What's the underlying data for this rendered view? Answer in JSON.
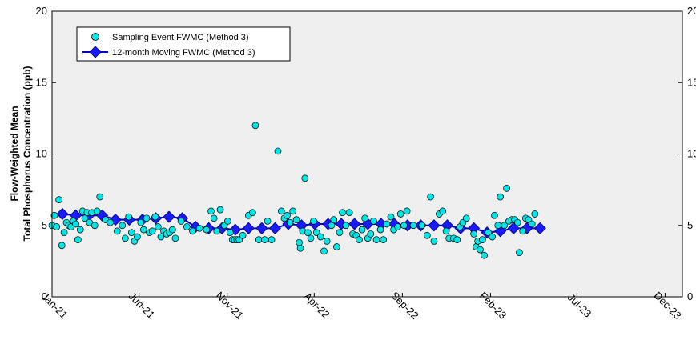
{
  "chart_data": {
    "type": "line",
    "ylabel_line1": "Flow-Weighted Mean",
    "ylabel_line2": "Total Phosphorus Concentration (ppb)",
    "xlabel": "",
    "ylim": [
      0,
      20
    ],
    "yticks": [
      0,
      5,
      10,
      15,
      20
    ],
    "x_range": [
      "2021-01-01",
      "2023-12-31"
    ],
    "x_ticks": [
      {
        "date": "2021-01-01",
        "label": "Jan-21"
      },
      {
        "date": "2021-06-01",
        "label": "Jun-21"
      },
      {
        "date": "2021-11-01",
        "label": "Nov-21"
      },
      {
        "date": "2022-04-01",
        "label": "Apr-22"
      },
      {
        "date": "2022-09-01",
        "label": "Sep-22"
      },
      {
        "date": "2023-02-01",
        "label": "Feb-23"
      },
      {
        "date": "2023-07-01",
        "label": "Jul-23"
      },
      {
        "date": "2023-12-01",
        "label": "Dec-23"
      }
    ],
    "grid": false,
    "legend_position": "top-left",
    "colors": {
      "plot_bg": "#efefef",
      "event_fill": "#00e5e5",
      "moving_line": "#0000cc",
      "moving_marker": "#1a1aff"
    },
    "series": [
      {
        "name": "Sampling Event FWMC (Method 3)",
        "style": "scatter",
        "points": [
          [
            "2021-01-01",
            5.0
          ],
          [
            "2021-01-05",
            5.7
          ],
          [
            "2021-01-09",
            4.9
          ],
          [
            "2021-01-13",
            6.8
          ],
          [
            "2021-01-18",
            3.6
          ],
          [
            "2021-01-22",
            4.5
          ],
          [
            "2021-01-26",
            5.2
          ],
          [
            "2021-01-30",
            5.0
          ],
          [
            "2021-02-03",
            4.9
          ],
          [
            "2021-02-07",
            5.3
          ],
          [
            "2021-02-11",
            5.1
          ],
          [
            "2021-02-15",
            4.0
          ],
          [
            "2021-02-19",
            4.7
          ],
          [
            "2021-02-23",
            6.0
          ],
          [
            "2021-02-27",
            5.5
          ],
          [
            "2021-03-03",
            5.9
          ],
          [
            "2021-03-07",
            5.2
          ],
          [
            "2021-03-11",
            5.9
          ],
          [
            "2021-03-16",
            5.0
          ],
          [
            "2021-03-20",
            6.0
          ],
          [
            "2021-03-25",
            7.0
          ],
          [
            "2021-04-04",
            5.4
          ],
          [
            "2021-04-12",
            5.2
          ],
          [
            "2021-04-24",
            4.6
          ],
          [
            "2021-05-03",
            5.0
          ],
          [
            "2021-05-08",
            4.1
          ],
          [
            "2021-05-14",
            5.6
          ],
          [
            "2021-05-19",
            4.5
          ],
          [
            "2021-05-24",
            3.9
          ],
          [
            "2021-05-29",
            4.2
          ],
          [
            "2021-06-04",
            5.2
          ],
          [
            "2021-06-09",
            4.7
          ],
          [
            "2021-06-14",
            5.5
          ],
          [
            "2021-06-19",
            4.5
          ],
          [
            "2021-06-24",
            4.6
          ],
          [
            "2021-06-29",
            5.6
          ],
          [
            "2021-07-04",
            4.9
          ],
          [
            "2021-07-09",
            4.2
          ],
          [
            "2021-07-14",
            4.6
          ],
          [
            "2021-07-19",
            4.4
          ],
          [
            "2021-07-24",
            4.5
          ],
          [
            "2021-07-29",
            4.7
          ],
          [
            "2021-08-03",
            4.1
          ],
          [
            "2021-08-13",
            5.3
          ],
          [
            "2021-08-23",
            4.9
          ],
          [
            "2021-09-02",
            4.6
          ],
          [
            "2021-09-14",
            4.8
          ],
          [
            "2021-09-26",
            4.7
          ],
          [
            "2021-10-04",
            6.0
          ],
          [
            "2021-10-09",
            5.5
          ],
          [
            "2021-10-14",
            4.6
          ],
          [
            "2021-10-20",
            6.1
          ],
          [
            "2021-10-27",
            5.0
          ],
          [
            "2021-11-02",
            5.3
          ],
          [
            "2021-11-06",
            4.5
          ],
          [
            "2021-11-10",
            4.0
          ],
          [
            "2021-11-14",
            4.0
          ],
          [
            "2021-11-18",
            4.0
          ],
          [
            "2021-11-22",
            4.0
          ],
          [
            "2021-11-28",
            4.3
          ],
          [
            "2021-12-08",
            5.7
          ],
          [
            "2021-12-15",
            5.9
          ],
          [
            "2021-12-20",
            12.0
          ],
          [
            "2021-12-26",
            4.0
          ],
          [
            "2022-01-05",
            4.0
          ],
          [
            "2022-01-10",
            5.3
          ],
          [
            "2022-01-17",
            4.0
          ],
          [
            "2022-01-28",
            10.2
          ],
          [
            "2022-02-03",
            6.0
          ],
          [
            "2022-02-08",
            5.5
          ],
          [
            "2022-02-13",
            5.7
          ],
          [
            "2022-02-18",
            5.2
          ],
          [
            "2022-02-23",
            6.0
          ],
          [
            "2022-03-01",
            5.4
          ],
          [
            "2022-03-06",
            3.8
          ],
          [
            "2022-03-08",
            3.4
          ],
          [
            "2022-03-12",
            4.6
          ],
          [
            "2022-03-16",
            8.3
          ],
          [
            "2022-03-21",
            4.5
          ],
          [
            "2022-03-26",
            4.1
          ],
          [
            "2022-03-31",
            5.3
          ],
          [
            "2022-04-05",
            4.5
          ],
          [
            "2022-04-12",
            4.2
          ],
          [
            "2022-04-18",
            3.2
          ],
          [
            "2022-04-23",
            3.9
          ],
          [
            "2022-05-01",
            5.0
          ],
          [
            "2022-05-05",
            5.4
          ],
          [
            "2022-05-10",
            3.5
          ],
          [
            "2022-05-15",
            4.5
          ],
          [
            "2022-05-20",
            5.9
          ],
          [
            "2022-05-26",
            5.0
          ],
          [
            "2022-06-01",
            5.9
          ],
          [
            "2022-06-07",
            4.4
          ],
          [
            "2022-06-13",
            4.3
          ],
          [
            "2022-06-18",
            4.0
          ],
          [
            "2022-06-23",
            4.7
          ],
          [
            "2022-06-28",
            5.5
          ],
          [
            "2022-07-03",
            4.1
          ],
          [
            "2022-07-08",
            4.4
          ],
          [
            "2022-07-13",
            5.3
          ],
          [
            "2022-07-18",
            4.0
          ],
          [
            "2022-07-25",
            4.7
          ],
          [
            "2022-07-30",
            4.0
          ],
          [
            "2022-08-05",
            5.1
          ],
          [
            "2022-08-12",
            5.6
          ],
          [
            "2022-08-17",
            4.7
          ],
          [
            "2022-08-24",
            4.9
          ],
          [
            "2022-08-29",
            5.8
          ],
          [
            "2022-09-04",
            5.0
          ],
          [
            "2022-09-09",
            6.0
          ],
          [
            "2022-09-20",
            5.0
          ],
          [
            "2022-10-05",
            5.0
          ],
          [
            "2022-10-14",
            4.3
          ],
          [
            "2022-10-20",
            7.0
          ],
          [
            "2022-10-26",
            3.9
          ],
          [
            "2022-11-04",
            5.8
          ],
          [
            "2022-11-10",
            6.0
          ],
          [
            "2022-11-16",
            4.6
          ],
          [
            "2022-11-21",
            4.1
          ],
          [
            "2022-11-29",
            4.1
          ],
          [
            "2022-12-05",
            4.0
          ],
          [
            "2022-12-10",
            4.9
          ],
          [
            "2022-12-15",
            5.2
          ],
          [
            "2022-12-21",
            5.5
          ],
          [
            "2023-01-03",
            4.4
          ],
          [
            "2023-01-07",
            3.5
          ],
          [
            "2023-01-10",
            3.9
          ],
          [
            "2023-01-14",
            3.3
          ],
          [
            "2023-01-18",
            4.0
          ],
          [
            "2023-01-21",
            2.9
          ],
          [
            "2023-01-28",
            4.5
          ],
          [
            "2023-02-04",
            4.2
          ],
          [
            "2023-02-08",
            5.7
          ],
          [
            "2023-02-14",
            5.0
          ],
          [
            "2023-02-18",
            7.0
          ],
          [
            "2023-02-25",
            5.0
          ],
          [
            "2023-03-01",
            7.6
          ],
          [
            "2023-03-05",
            5.3
          ],
          [
            "2023-03-10",
            5.4
          ],
          [
            "2023-03-15",
            5.4
          ],
          [
            "2023-03-20",
            5.2
          ],
          [
            "2023-03-23",
            3.1
          ],
          [
            "2023-03-29",
            4.6
          ],
          [
            "2023-04-03",
            5.5
          ],
          [
            "2023-04-08",
            5.4
          ],
          [
            "2023-04-14",
            5.1
          ],
          [
            "2023-04-19",
            5.8
          ]
        ]
      },
      {
        "name": "12-month Moving FWMC (Method 3)",
        "style": "line-marker",
        "points": [
          [
            "2021-01-19",
            5.8
          ],
          [
            "2021-02-11",
            5.7
          ],
          [
            "2021-03-06",
            5.7
          ],
          [
            "2021-03-29",
            5.7
          ],
          [
            "2021-04-21",
            5.4
          ],
          [
            "2021-05-15",
            5.4
          ],
          [
            "2021-06-07",
            5.4
          ],
          [
            "2021-06-30",
            5.5
          ],
          [
            "2021-07-23",
            5.6
          ],
          [
            "2021-08-15",
            5.5
          ],
          [
            "2021-09-07",
            4.9
          ],
          [
            "2021-09-30",
            4.8
          ],
          [
            "2021-10-23",
            4.8
          ],
          [
            "2021-11-15",
            4.7
          ],
          [
            "2021-12-08",
            4.8
          ],
          [
            "2021-12-31",
            4.8
          ],
          [
            "2022-01-23",
            4.8
          ],
          [
            "2022-02-15",
            5.1
          ],
          [
            "2022-03-10",
            5.0
          ],
          [
            "2022-04-02",
            5.1
          ],
          [
            "2022-04-25",
            5.1
          ],
          [
            "2022-05-18",
            5.1
          ],
          [
            "2022-06-10",
            5.1
          ],
          [
            "2022-07-03",
            5.1
          ],
          [
            "2022-07-26",
            5.1
          ],
          [
            "2022-08-18",
            5.1
          ],
          [
            "2022-09-10",
            5.0
          ],
          [
            "2022-10-03",
            5.0
          ],
          [
            "2022-10-26",
            5.0
          ],
          [
            "2022-11-18",
            5.0
          ],
          [
            "2022-12-11",
            4.8
          ],
          [
            "2023-01-03",
            4.8
          ],
          [
            "2023-01-26",
            4.5
          ],
          [
            "2023-02-18",
            4.6
          ],
          [
            "2023-03-13",
            4.8
          ],
          [
            "2023-04-05",
            4.8
          ],
          [
            "2023-04-28",
            4.8
          ]
        ]
      }
    ]
  }
}
